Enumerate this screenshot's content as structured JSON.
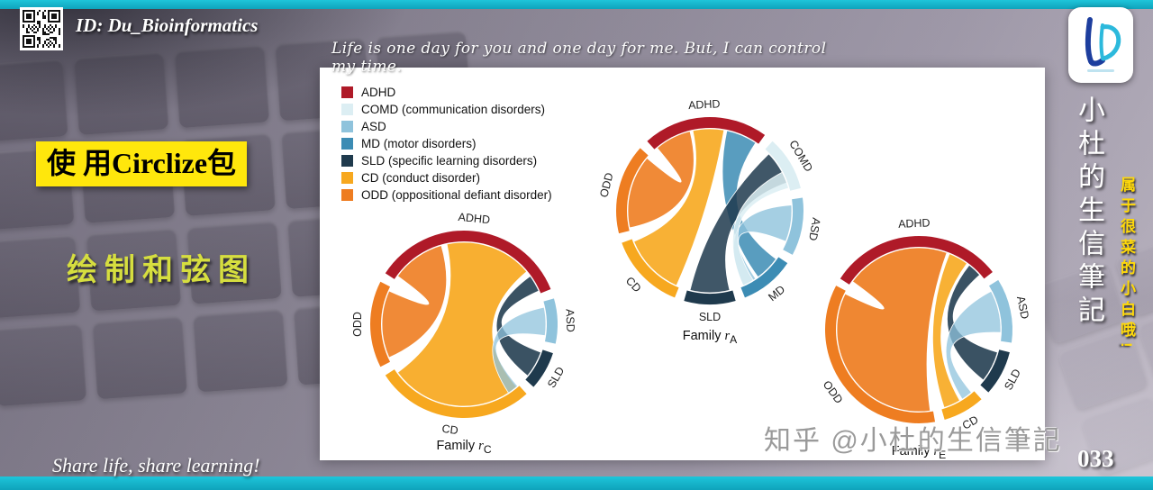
{
  "meta": {
    "top_left_id": "ID: Du_Bioinformatics",
    "quote": "Life is one day for you and one day for me. But, I can control my time.",
    "banner_title": "使 用Circlize包",
    "banner_subtitle": "绘制和弦图",
    "right_vertical_title": "小杜的生信筆記",
    "right_vertical_note": "属于很菜的小白哦!",
    "watermark": "知乎 @小杜的生信筆記",
    "page_number": "033",
    "footer_left": "Share life, share learning!"
  },
  "legend": {
    "items": [
      {
        "label": "ADHD",
        "color": "#AF1A28"
      },
      {
        "label": "COMD (communication disorders)",
        "color": "#DCEEF3"
      },
      {
        "label": "ASD",
        "color": "#8FC3DC"
      },
      {
        "label": "MD (motor disorders)",
        "color": "#3C8CB4"
      },
      {
        "label": "SLD (specific learning disorders)",
        "color": "#1F3A4D"
      },
      {
        "label": "CD (conduct disorder)",
        "color": "#F7A81F"
      },
      {
        "label": "ODD (oppositional defiant disorder)",
        "color": "#EE7D21"
      }
    ]
  },
  "chart_data": [
    {
      "type": "chord",
      "caption": {
        "prefix": "Family ",
        "symbol": "r",
        "sub": "C"
      },
      "sectors": [
        {
          "name": "ADHD",
          "start": -57,
          "end": 68,
          "color": "#AF1A28"
        },
        {
          "name": "ASD",
          "start": 74,
          "end": 102,
          "color": "#8FC3DC"
        },
        {
          "name": "SLD",
          "start": 108,
          "end": 132,
          "color": "#1F3A4D"
        },
        {
          "name": "CD",
          "start": 138,
          "end": 237,
          "color": "#F7A81F"
        },
        {
          "name": "ODD",
          "start": 243,
          "end": 297,
          "color": "#EE7D21"
        }
      ],
      "ribbons": [
        {
          "from": [
            246,
            294
          ],
          "to": [
            -54,
            -16
          ],
          "color": "#EE7D21",
          "opacity": 0.9
        },
        {
          "from": [
            140,
            234
          ],
          "to": [
            -12,
            50
          ],
          "color": "#F7A81F",
          "opacity": 0.92
        },
        {
          "from": [
            110,
            129
          ],
          "to": [
            54,
            66
          ],
          "color": "#1F3A4D",
          "opacity": 0.88
        },
        {
          "from": [
            78,
            98
          ],
          "to": [
            139,
            147
          ],
          "color": "#8FC3DC",
          "opacity": 0.75
        }
      ]
    },
    {
      "type": "chord",
      "caption": {
        "prefix": "Family ",
        "symbol": "r",
        "sub": "A"
      },
      "sectors": [
        {
          "name": "ADHD",
          "start": -42,
          "end": 36,
          "color": "#AF1A28"
        },
        {
          "name": "COMD",
          "start": 42,
          "end": 76,
          "color": "#DCEEF3"
        },
        {
          "name": "ASD",
          "start": 82,
          "end": 118,
          "color": "#8FC3DC"
        },
        {
          "name": "MD",
          "start": 124,
          "end": 158,
          "color": "#3C8CB4"
        },
        {
          "name": "SLD",
          "start": 164,
          "end": 196,
          "color": "#1F3A4D"
        },
        {
          "name": "CD",
          "start": 202,
          "end": 250,
          "color": "#F7A81F"
        },
        {
          "name": "ODD",
          "start": 256,
          "end": 312,
          "color": "#EE7D21"
        }
      ],
      "ribbons": [
        {
          "from": [
            258,
            310
          ],
          "to": [
            -40,
            -14
          ],
          "color": "#EE7D21",
          "opacity": 0.9
        },
        {
          "from": [
            204,
            248
          ],
          "to": [
            -12,
            10
          ],
          "color": "#F7A81F",
          "opacity": 0.9
        },
        {
          "from": [
            126,
            144
          ],
          "to": [
            12,
            34
          ],
          "color": "#3C8CB4",
          "opacity": 0.85
        },
        {
          "from": [
            166,
            194
          ],
          "to": [
            46,
            70
          ],
          "color": "#1F3A4D",
          "opacity": 0.85
        },
        {
          "from": [
            86,
            112
          ],
          "to": [
            146,
            156
          ],
          "color": "#8FC3DC",
          "opacity": 0.8
        },
        {
          "from": [
            62,
            74
          ],
          "to": [
            148,
            156
          ],
          "color": "#DCEEF3",
          "opacity": 0.85
        }
      ]
    },
    {
      "type": "chord",
      "caption": {
        "prefix": "Family ",
        "symbol": "r",
        "sub": "E"
      },
      "sectors": [
        {
          "name": "ADHD",
          "start": -57,
          "end": 52,
          "color": "#AF1A28"
        },
        {
          "name": "ASD",
          "start": 58,
          "end": 98,
          "color": "#8FC3DC"
        },
        {
          "name": "SLD",
          "start": 104,
          "end": 132,
          "color": "#1F3A4D"
        },
        {
          "name": "CD",
          "start": 138,
          "end": 164,
          "color": "#F7A81F"
        },
        {
          "name": "ODD",
          "start": 170,
          "end": 298,
          "color": "#EE7D21"
        }
      ],
      "ribbons": [
        {
          "from": [
            172,
            296
          ],
          "to": [
            -54,
            20
          ],
          "color": "#EE7D21",
          "opacity": 0.92
        },
        {
          "from": [
            150,
            162
          ],
          "to": [
            22,
            36
          ],
          "color": "#F7A81F",
          "opacity": 0.9
        },
        {
          "from": [
            106,
            128
          ],
          "to": [
            38,
            48
          ],
          "color": "#1F3A4D",
          "opacity": 0.88
        },
        {
          "from": [
            62,
            92
          ],
          "to": [
            140,
            148
          ],
          "color": "#8FC3DC",
          "opacity": 0.75
        }
      ]
    }
  ]
}
